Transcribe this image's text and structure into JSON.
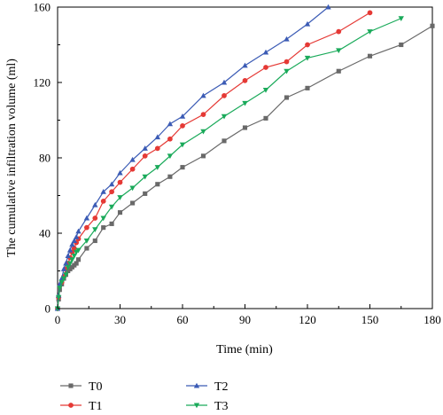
{
  "chart_data": {
    "type": "line",
    "title": "",
    "xlabel": "Time (min)",
    "ylabel": "The cumulative infiltration volume (ml)",
    "xlim": [
      0,
      180
    ],
    "ylim": [
      0,
      160
    ],
    "xticks": [
      0,
      30,
      60,
      90,
      120,
      150,
      180
    ],
    "yticks": [
      0,
      40,
      80,
      120,
      160
    ],
    "grid": false,
    "legend_position": "bottom",
    "series": [
      {
        "name": "T0",
        "color": "#696969",
        "marker": "square",
        "x": [
          0,
          0.5,
          1,
          2,
          3,
          4,
          5,
          6,
          7,
          8,
          9,
          10,
          14,
          18,
          22,
          26,
          30,
          36,
          42,
          48,
          54,
          60,
          70,
          80,
          90,
          100,
          110,
          120,
          135,
          150,
          165,
          180
        ],
        "y": [
          0,
          5,
          10,
          13,
          16,
          18,
          20,
          21,
          22,
          23,
          24,
          26,
          32,
          36,
          43,
          45,
          51,
          56,
          61,
          66,
          70,
          75,
          81,
          89,
          96,
          101,
          112,
          117,
          126,
          134,
          140,
          150
        ]
      },
      {
        "name": "T1",
        "color": "#e53935",
        "marker": "circle",
        "x": [
          0,
          0.5,
          1,
          2,
          3,
          4,
          5,
          6,
          7,
          8,
          9,
          10,
          14,
          18,
          22,
          26,
          30,
          36,
          42,
          48,
          54,
          60,
          70,
          80,
          90,
          100,
          110,
          120,
          135,
          150
        ],
        "y": [
          0,
          6,
          12,
          14,
          17,
          21,
          24,
          27,
          30,
          32,
          35,
          37,
          43,
          48,
          57,
          62,
          67,
          74,
          81,
          85,
          90,
          97,
          103,
          113,
          121,
          128,
          131,
          140,
          147,
          157
        ]
      },
      {
        "name": "T2",
        "color": "#3b5bb5",
        "marker": "triangle-up",
        "x": [
          0,
          0.5,
          1,
          2,
          3,
          4,
          5,
          6,
          7,
          8,
          9,
          10,
          14,
          18,
          22,
          26,
          30,
          36,
          42,
          48,
          54,
          60,
          70,
          80,
          90,
          100,
          110,
          120,
          130
        ],
        "y": [
          0,
          7,
          13,
          16,
          21,
          24,
          28,
          31,
          34,
          36,
          38,
          41,
          48,
          55,
          62,
          66,
          72,
          79,
          85,
          91,
          98,
          102,
          113,
          120,
          129,
          136,
          143,
          151,
          160
        ]
      },
      {
        "name": "T3",
        "color": "#1aaa5a",
        "marker": "triangle-down",
        "x": [
          0,
          0.5,
          1,
          2,
          3,
          4,
          5,
          6,
          7,
          8,
          9,
          10,
          14,
          18,
          22,
          26,
          30,
          36,
          42,
          48,
          54,
          60,
          70,
          80,
          90,
          100,
          110,
          120,
          135,
          150,
          165
        ],
        "y": [
          0,
          6,
          11,
          14,
          16,
          18,
          22,
          24,
          26,
          28,
          30,
          31,
          36,
          42,
          48,
          54,
          59,
          64,
          70,
          75,
          81,
          87,
          94,
          102,
          109,
          116,
          126,
          133,
          137,
          147,
          154
        ]
      }
    ]
  }
}
